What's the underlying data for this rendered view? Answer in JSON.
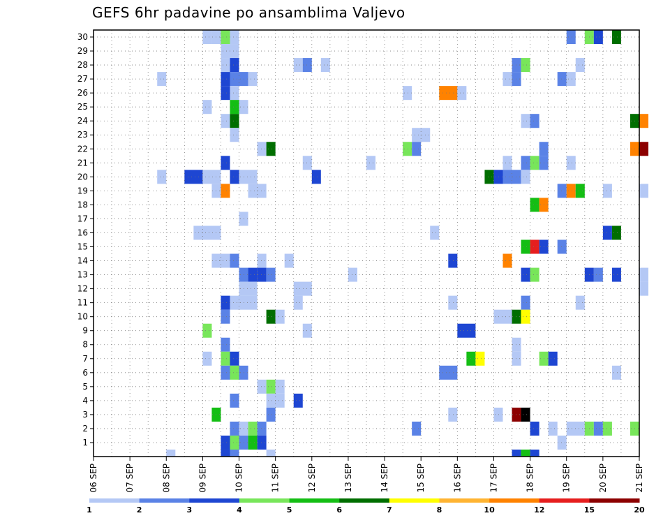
{
  "chart_data": {
    "type": "heatmap",
    "title": "GEFS 6hr padavine po ansamblima Valjevo",
    "x_tick_labels": [
      "06 SEP",
      "07 SEP",
      "08 SEP",
      "09 SEP",
      "10 SEP",
      "11 SEP",
      "12 SEP",
      "13 SEP",
      "14 SEP",
      "15 SEP",
      "16 SEP",
      "17 SEP",
      "18 SEP",
      "19 SEP",
      "20 SEP",
      "21 SEP"
    ],
    "y_tick_labels": [
      "1",
      "2",
      "3",
      "4",
      "5",
      "6",
      "7",
      "8",
      "9",
      "10",
      "11",
      "12",
      "13",
      "14",
      "15",
      "16",
      "17",
      "18",
      "19",
      "20",
      "21",
      "22",
      "23",
      "24",
      "25",
      "26",
      "27",
      "28",
      "29",
      "30"
    ],
    "x_range_days": [
      0,
      15
    ],
    "y_range_members": [
      0,
      30
    ],
    "grid": "dotted",
    "legend": {
      "placement": "bottom",
      "levels": [
        "1",
        "2",
        "3",
        "4",
        "5",
        "6",
        "7",
        "8",
        "10",
        "12",
        "15",
        "20"
      ],
      "colors": [
        "#b4c8f5",
        "#5a82e6",
        "#1e46d2",
        "#78e65a",
        "#14be14",
        "#006e00",
        "#ffff00",
        "#ffb432",
        "#ff8200",
        "#e61e1e",
        "#8c0000"
      ]
    },
    "cells": [
      [
        30,
        3.0,
        3.25,
        1
      ],
      [
        30,
        3.25,
        3.5,
        1
      ],
      [
        30,
        3.5,
        3.75,
        4
      ],
      [
        30,
        3.75,
        4.0,
        1
      ],
      [
        30,
        13.0,
        13.25,
        2
      ],
      [
        30,
        13.5,
        13.75,
        4
      ],
      [
        30,
        13.75,
        14.0,
        3
      ],
      [
        30,
        14.25,
        14.5,
        6
      ],
      [
        29,
        3.5,
        4.0,
        1
      ],
      [
        28,
        3.5,
        3.75,
        1
      ],
      [
        28,
        3.75,
        4.0,
        3
      ],
      [
        28,
        5.5,
        5.75,
        1
      ],
      [
        28,
        5.75,
        6.0,
        2
      ],
      [
        28,
        6.25,
        6.5,
        1
      ],
      [
        28,
        11.5,
        11.75,
        2
      ],
      [
        28,
        11.75,
        12.0,
        4
      ],
      [
        28,
        13.25,
        13.5,
        1
      ],
      [
        27,
        1.75,
        2.0,
        1
      ],
      [
        27,
        3.5,
        3.75,
        3
      ],
      [
        27,
        3.75,
        4.25,
        2
      ],
      [
        27,
        4.25,
        4.5,
        1
      ],
      [
        27,
        11.25,
        11.5,
        1
      ],
      [
        27,
        11.5,
        11.75,
        2
      ],
      [
        27,
        12.75,
        13.0,
        2
      ],
      [
        27,
        13.0,
        13.25,
        1
      ],
      [
        26,
        3.5,
        3.75,
        3
      ],
      [
        26,
        3.75,
        4.0,
        1
      ],
      [
        26,
        8.5,
        8.75,
        1
      ],
      [
        26,
        9.5,
        10.0,
        9
      ],
      [
        26,
        10.0,
        10.25,
        1
      ],
      [
        25,
        3.0,
        3.25,
        1
      ],
      [
        25,
        3.75,
        4.0,
        5
      ],
      [
        25,
        4.0,
        4.25,
        1
      ],
      [
        24,
        3.5,
        3.75,
        1
      ],
      [
        24,
        3.75,
        4.0,
        6
      ],
      [
        24,
        11.75,
        12.0,
        1
      ],
      [
        24,
        12.0,
        12.25,
        2
      ],
      [
        24,
        14.75,
        15.0,
        6
      ],
      [
        24,
        15.0,
        15.25,
        9
      ],
      [
        23,
        3.75,
        4.0,
        1
      ],
      [
        23,
        8.75,
        9.25,
        1
      ],
      [
        22,
        4.5,
        4.75,
        1
      ],
      [
        22,
        4.75,
        5.0,
        6
      ],
      [
        22,
        8.5,
        8.75,
        4
      ],
      [
        22,
        8.75,
        9.0,
        2
      ],
      [
        22,
        12.25,
        12.5,
        2
      ],
      [
        22,
        14.75,
        15.0,
        9
      ],
      [
        22,
        15.0,
        15.25,
        11
      ],
      [
        21,
        3.5,
        3.75,
        3
      ],
      [
        21,
        5.75,
        6.0,
        1
      ],
      [
        21,
        7.5,
        7.75,
        1
      ],
      [
        21,
        11.25,
        11.5,
        1
      ],
      [
        21,
        11.75,
        12.0,
        2
      ],
      [
        21,
        12.0,
        12.25,
        4
      ],
      [
        21,
        12.25,
        12.5,
        2
      ],
      [
        21,
        13.0,
        13.25,
        1
      ],
      [
        20,
        1.75,
        2.0,
        1
      ],
      [
        20,
        2.5,
        3.0,
        3
      ],
      [
        20,
        3.0,
        3.5,
        1
      ],
      [
        20,
        3.75,
        4.0,
        3
      ],
      [
        20,
        4.0,
        4.5,
        1
      ],
      [
        20,
        6.0,
        6.25,
        3
      ],
      [
        20,
        10.75,
        11.0,
        6
      ],
      [
        20,
        11.0,
        11.25,
        3
      ],
      [
        20,
        11.25,
        11.75,
        2
      ],
      [
        20,
        11.75,
        12.0,
        1
      ],
      [
        19,
        3.25,
        3.5,
        1
      ],
      [
        19,
        3.5,
        3.75,
        9
      ],
      [
        19,
        4.25,
        4.75,
        1
      ],
      [
        19,
        12.75,
        13.0,
        2
      ],
      [
        19,
        13.0,
        13.25,
        9
      ],
      [
        19,
        13.25,
        13.5,
        5
      ],
      [
        19,
        14.0,
        14.25,
        1
      ],
      [
        19,
        15.0,
        15.25,
        1
      ],
      [
        18,
        12.0,
        12.25,
        5
      ],
      [
        18,
        12.25,
        12.5,
        9
      ],
      [
        17,
        4.0,
        4.25,
        1
      ],
      [
        16,
        2.75,
        3.5,
        1
      ],
      [
        16,
        9.25,
        9.5,
        1
      ],
      [
        16,
        14.0,
        14.25,
        3
      ],
      [
        16,
        14.25,
        14.5,
        6
      ],
      [
        15,
        11.75,
        12.0,
        5
      ],
      [
        15,
        12.0,
        12.25,
        10
      ],
      [
        15,
        12.25,
        12.5,
        3
      ],
      [
        15,
        12.75,
        13.0,
        2
      ],
      [
        14,
        3.25,
        3.75,
        1
      ],
      [
        14,
        3.75,
        4.0,
        2
      ],
      [
        14,
        4.5,
        4.75,
        1
      ],
      [
        14,
        5.25,
        5.5,
        1
      ],
      [
        14,
        9.75,
        10.0,
        3
      ],
      [
        14,
        11.25,
        11.5,
        9
      ],
      [
        13,
        4.0,
        4.25,
        2
      ],
      [
        13,
        4.25,
        4.5,
        3
      ],
      [
        13,
        4.5,
        4.75,
        3
      ],
      [
        13,
        4.75,
        5.0,
        2
      ],
      [
        13,
        7.0,
        7.25,
        1
      ],
      [
        13,
        11.75,
        12.0,
        3
      ],
      [
        13,
        12.0,
        12.25,
        4
      ],
      [
        13,
        13.5,
        13.75,
        3
      ],
      [
        13,
        13.75,
        14.0,
        2
      ],
      [
        13,
        14.25,
        14.5,
        3
      ],
      [
        13,
        15.0,
        15.25,
        1
      ],
      [
        12,
        4.0,
        4.5,
        1
      ],
      [
        12,
        5.5,
        6.0,
        1
      ],
      [
        12,
        15.0,
        15.25,
        1
      ],
      [
        11,
        3.5,
        3.75,
        3
      ],
      [
        11,
        3.75,
        4.5,
        1
      ],
      [
        11,
        5.5,
        5.75,
        1
      ],
      [
        11,
        9.75,
        10.0,
        1
      ],
      [
        11,
        11.75,
        12.0,
        2
      ],
      [
        11,
        13.25,
        13.5,
        1
      ],
      [
        10,
        3.5,
        3.75,
        2
      ],
      [
        10,
        4.75,
        5.0,
        6
      ],
      [
        10,
        5.0,
        5.25,
        1
      ],
      [
        10,
        11.0,
        11.5,
        1
      ],
      [
        10,
        11.5,
        11.75,
        6
      ],
      [
        10,
        11.75,
        12.0,
        7
      ],
      [
        9,
        3.0,
        3.25,
        4
      ],
      [
        9,
        5.75,
        6.0,
        1
      ],
      [
        9,
        10.0,
        10.5,
        3
      ],
      [
        8,
        3.5,
        3.75,
        2
      ],
      [
        8,
        11.5,
        11.75,
        1
      ],
      [
        7,
        3.0,
        3.25,
        1
      ],
      [
        7,
        3.5,
        3.75,
        4
      ],
      [
        7,
        3.75,
        4.0,
        3
      ],
      [
        7,
        10.25,
        10.5,
        5
      ],
      [
        7,
        10.5,
        10.75,
        7
      ],
      [
        7,
        11.5,
        11.75,
        1
      ],
      [
        7,
        12.25,
        12.5,
        4
      ],
      [
        7,
        12.5,
        12.75,
        3
      ],
      [
        6,
        3.5,
        3.75,
        2
      ],
      [
        6,
        3.75,
        4.0,
        4
      ],
      [
        6,
        4.0,
        4.25,
        2
      ],
      [
        6,
        9.5,
        10.0,
        2
      ],
      [
        6,
        14.25,
        14.5,
        1
      ],
      [
        5,
        4.5,
        4.75,
        1
      ],
      [
        5,
        4.75,
        5.0,
        4
      ],
      [
        5,
        5.0,
        5.25,
        1
      ],
      [
        4,
        3.75,
        4.0,
        2
      ],
      [
        4,
        4.75,
        5.25,
        1
      ],
      [
        4,
        5.5,
        5.75,
        3
      ],
      [
        3,
        3.25,
        3.5,
        5
      ],
      [
        3,
        4.75,
        5.0,
        2
      ],
      [
        3,
        9.75,
        10.0,
        1
      ],
      [
        3,
        11.0,
        11.25,
        1
      ],
      [
        3,
        11.5,
        11.75,
        11
      ],
      [
        3,
        11.75,
        12.0,
        12
      ],
      [
        2,
        3.75,
        4.0,
        2
      ],
      [
        2,
        4.0,
        4.25,
        1
      ],
      [
        2,
        4.25,
        4.5,
        4
      ],
      [
        2,
        4.5,
        4.75,
        2
      ],
      [
        2,
        8.75,
        9.0,
        2
      ],
      [
        2,
        12.0,
        12.25,
        3
      ],
      [
        2,
        12.5,
        12.75,
        1
      ],
      [
        2,
        13.0,
        13.5,
        1
      ],
      [
        2,
        13.5,
        13.75,
        4
      ],
      [
        2,
        13.75,
        14.0,
        2
      ],
      [
        2,
        14.0,
        14.25,
        4
      ],
      [
        2,
        14.75,
        15.0,
        4
      ],
      [
        1,
        3.5,
        3.75,
        3
      ],
      [
        1,
        3.75,
        4.0,
        4
      ],
      [
        1,
        4.0,
        4.25,
        2
      ],
      [
        1,
        4.25,
        4.5,
        5
      ],
      [
        1,
        4.5,
        4.75,
        3
      ],
      [
        1,
        12.75,
        13.0,
        1
      ],
      [
        0,
        2.0,
        2.25,
        1
      ],
      [
        0,
        3.5,
        3.75,
        3
      ],
      [
        0,
        3.75,
        4.0,
        2
      ],
      [
        0,
        4.75,
        5.0,
        1
      ],
      [
        0,
        11.5,
        11.75,
        3
      ],
      [
        0,
        11.75,
        12.0,
        5
      ],
      [
        0,
        12.0,
        12.25,
        3
      ]
    ]
  }
}
